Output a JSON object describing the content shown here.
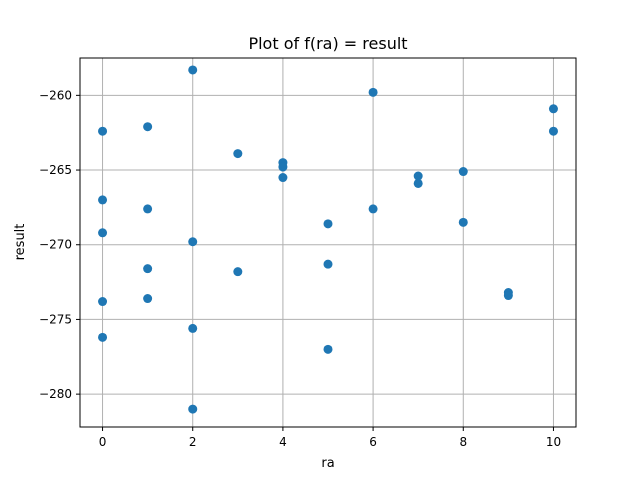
{
  "chart_data": {
    "type": "scatter",
    "title": "Plot of f(ra) = result",
    "xlabel": "ra",
    "ylabel": "result",
    "xlim": [
      -0.5,
      10.5
    ],
    "ylim": [
      -282.2,
      -257.5
    ],
    "xticks": [
      0,
      2,
      4,
      6,
      8,
      10
    ],
    "yticks": [
      -280,
      -275,
      -270,
      -265,
      -260
    ],
    "grid": true,
    "marker_color": "#1f77b4",
    "points": [
      {
        "x": 0,
        "y": -262.4
      },
      {
        "x": 0,
        "y": -267.0
      },
      {
        "x": 0,
        "y": -269.2
      },
      {
        "x": 0,
        "y": -273.8
      },
      {
        "x": 0,
        "y": -276.2
      },
      {
        "x": 1,
        "y": -262.1
      },
      {
        "x": 1,
        "y": -267.6
      },
      {
        "x": 1,
        "y": -271.6
      },
      {
        "x": 1,
        "y": -273.6
      },
      {
        "x": 2,
        "y": -258.3
      },
      {
        "x": 2,
        "y": -269.8
      },
      {
        "x": 2,
        "y": -275.6
      },
      {
        "x": 2,
        "y": -281.0
      },
      {
        "x": 3,
        "y": -263.9
      },
      {
        "x": 3,
        "y": -271.8
      },
      {
        "x": 4,
        "y": -264.5
      },
      {
        "x": 4,
        "y": -264.8
      },
      {
        "x": 4,
        "y": -265.5
      },
      {
        "x": 5,
        "y": -268.6
      },
      {
        "x": 5,
        "y": -271.3
      },
      {
        "x": 5,
        "y": -277.0
      },
      {
        "x": 6,
        "y": -259.8
      },
      {
        "x": 6,
        "y": -267.6
      },
      {
        "x": 7,
        "y": -265.4
      },
      {
        "x": 7,
        "y": -265.9
      },
      {
        "x": 8,
        "y": -265.1
      },
      {
        "x": 8,
        "y": -268.5
      },
      {
        "x": 9,
        "y": -273.2
      },
      {
        "x": 9,
        "y": -273.4
      },
      {
        "x": 10,
        "y": -260.9
      },
      {
        "x": 10,
        "y": -262.4
      }
    ]
  }
}
